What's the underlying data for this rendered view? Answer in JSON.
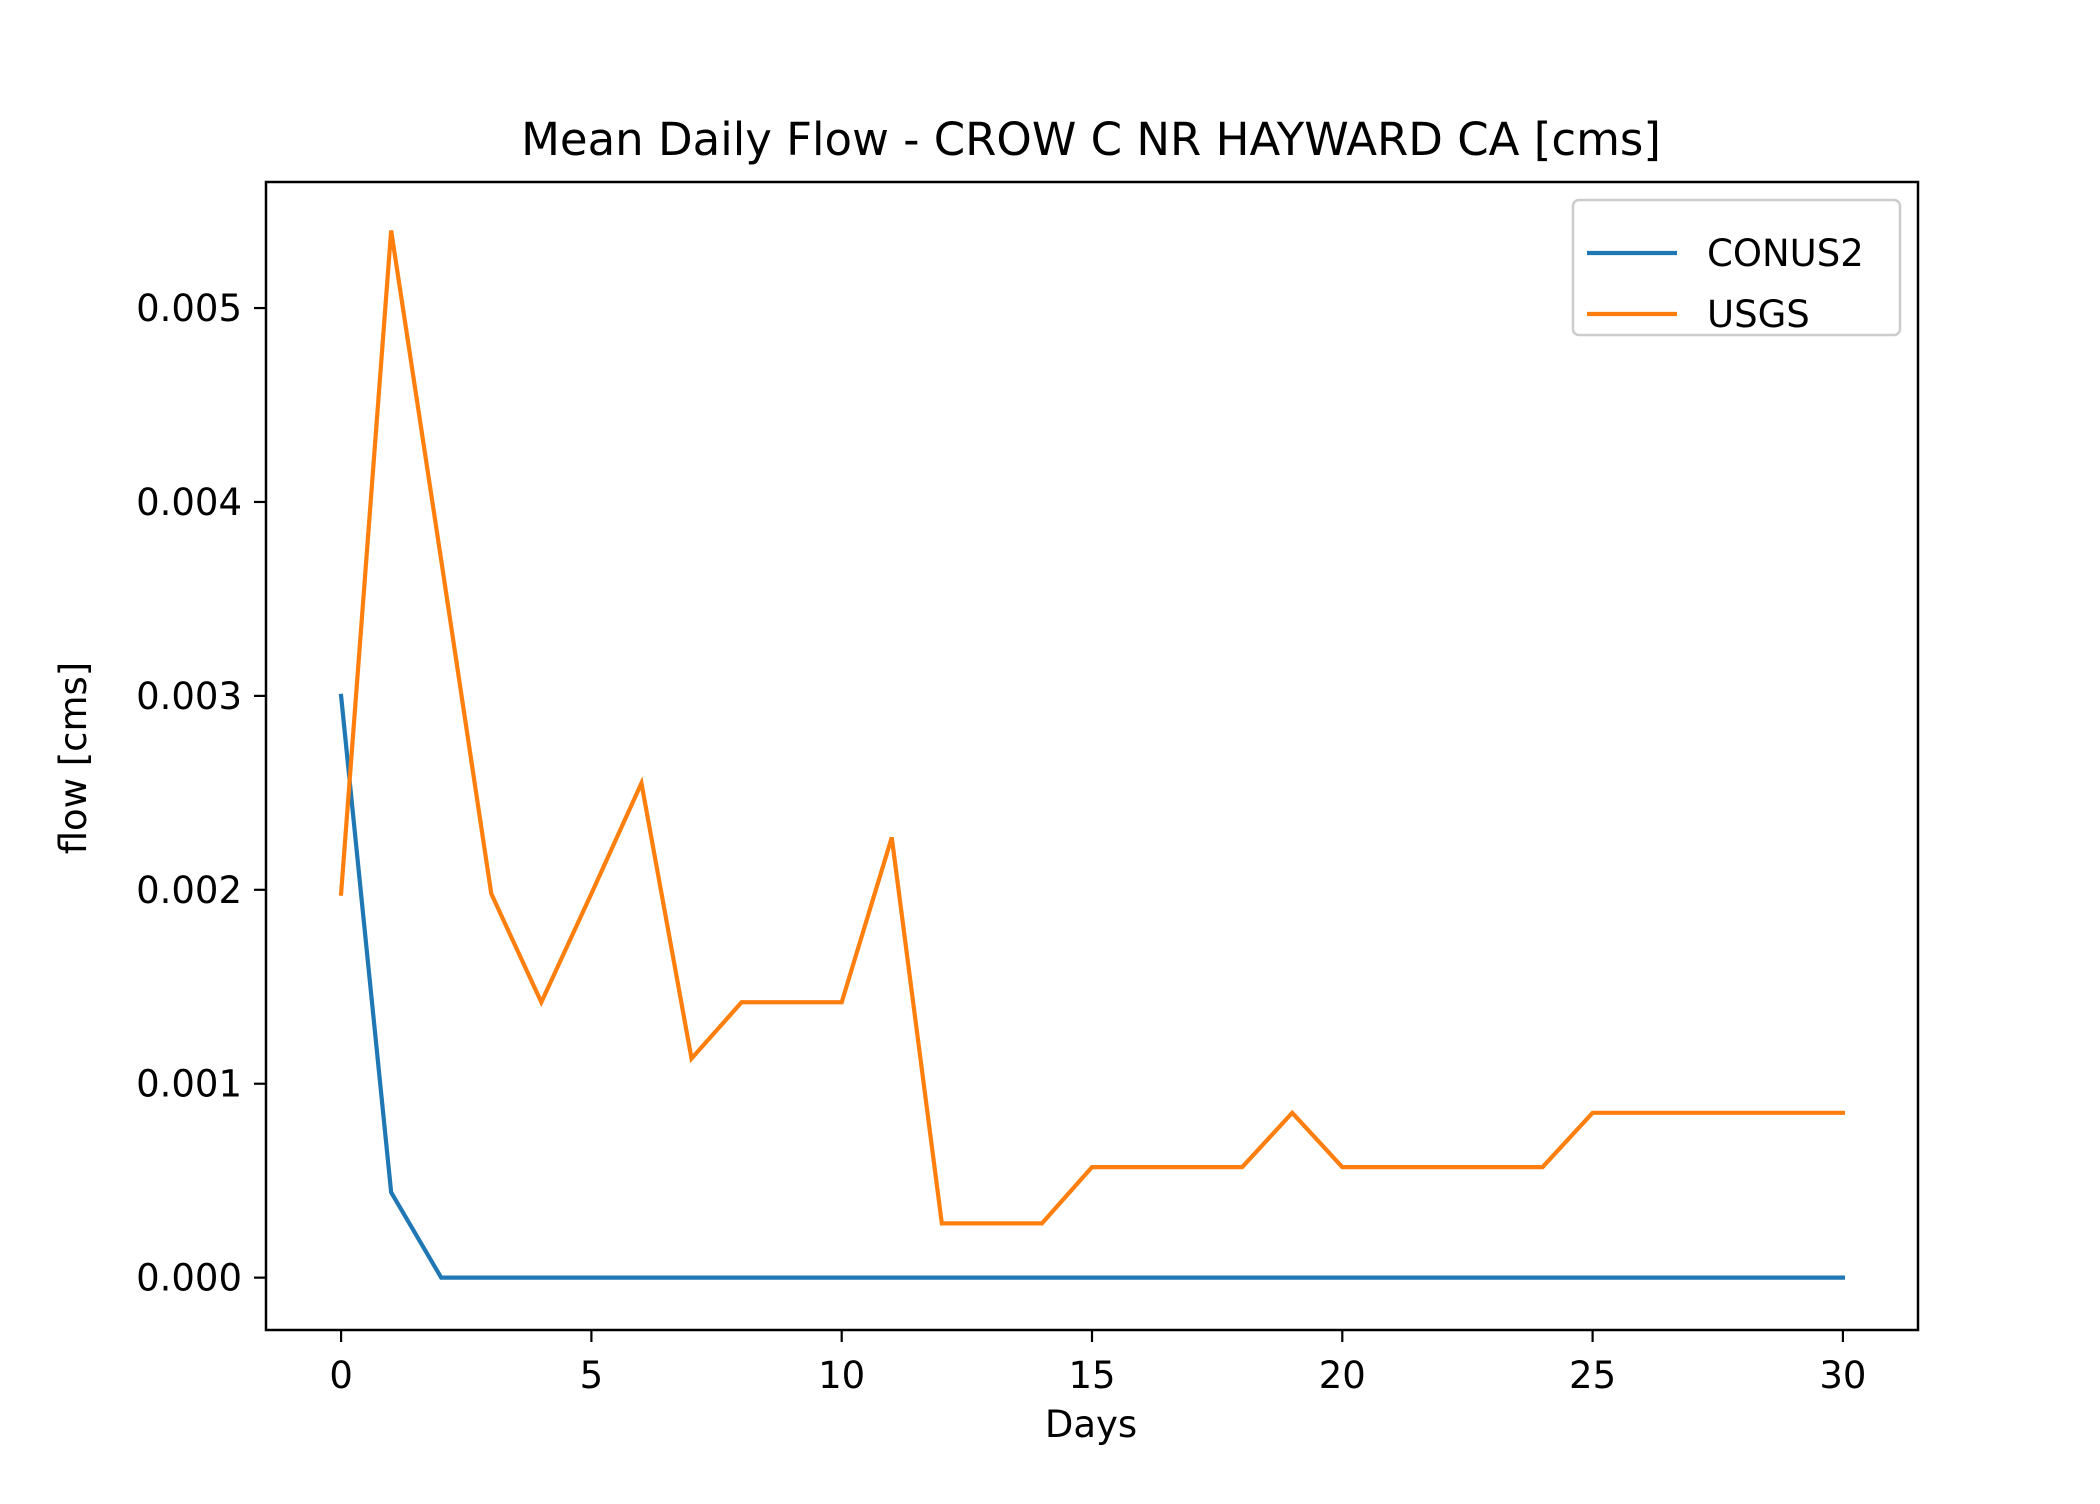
{
  "chart_data": {
    "type": "line",
    "title": "Mean Daily Flow - CROW C NR HAYWARD CA [cms]",
    "xlabel": "Days",
    "ylabel": "flow [cms]",
    "xlim": [
      -1.5,
      31.5
    ],
    "ylim": [
      -0.00027,
      0.00565
    ],
    "x_ticks": [
      0,
      5,
      10,
      15,
      20,
      25,
      30
    ],
    "x_tick_labels": [
      "0",
      "5",
      "10",
      "15",
      "20",
      "25",
      "30"
    ],
    "y_ticks": [
      0.0,
      0.001,
      0.002,
      0.003,
      0.004,
      0.005
    ],
    "y_tick_labels": [
      "0.000",
      "0.001",
      "0.002",
      "0.003",
      "0.004",
      "0.005"
    ],
    "grid": false,
    "legend_position": "top-right",
    "x": [
      0,
      1,
      2,
      3,
      4,
      5,
      6,
      7,
      8,
      9,
      10,
      11,
      12,
      13,
      14,
      15,
      16,
      17,
      18,
      19,
      20,
      21,
      22,
      23,
      24,
      25,
      26,
      27,
      28,
      29,
      30
    ],
    "series": [
      {
        "name": "CONUS2",
        "color": "#1f77b4",
        "values": [
          0.003,
          0.00044,
          0.0,
          0.0,
          0.0,
          0.0,
          0.0,
          0.0,
          0.0,
          0.0,
          0.0,
          0.0,
          0.0,
          0.0,
          0.0,
          0.0,
          0.0,
          0.0,
          0.0,
          0.0,
          0.0,
          0.0,
          0.0,
          0.0,
          0.0,
          0.0,
          0.0,
          0.0,
          0.0,
          0.0,
          0.0
        ]
      },
      {
        "name": "USGS",
        "color": "#ff7f0e",
        "values": [
          0.00198,
          0.0054,
          0.0037,
          0.00198,
          0.00142,
          0.00198,
          0.00255,
          0.00113,
          0.00142,
          0.00142,
          0.00142,
          0.00227,
          0.00028,
          0.00028,
          0.00028,
          0.00057,
          0.00057,
          0.00057,
          0.00057,
          0.00085,
          0.00057,
          0.00057,
          0.00057,
          0.00057,
          0.00057,
          0.00085,
          0.00085,
          0.00085,
          0.00085,
          0.00085,
          0.00085
        ]
      }
    ]
  }
}
